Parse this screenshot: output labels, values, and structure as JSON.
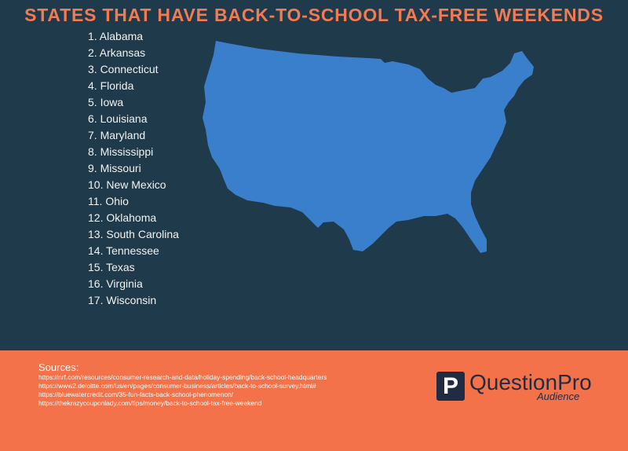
{
  "title": "STATES THAT HAVE BACK-TO-SCHOOL TAX-FREE WEEKENDS",
  "states": [
    "1. Alabama",
    "2. Arkansas",
    "3. Connecticut",
    "4. Florida",
    "5. Iowa",
    "6. Louisiana",
    "7. Maryland",
    "8. Mississippi",
    "9. Missouri",
    "10. New Mexico",
    "11. Ohio",
    "12. Oklahoma",
    "13. South Carolina",
    "14. Tennessee",
    "15. Texas",
    "16. Virginia",
    "17. Wisconsin"
  ],
  "sources": {
    "label": "Sources:",
    "links": [
      "https://nrf.com/resources/consumer-research-and-data/holiday-spending/back-school-headquarters",
      "https://www2.deloitte.com/us/en/pages/consumer-business/articles/back-to-school-survey.html#",
      "https://bluewatercredit.com/35-fun-facts-back-school-phenomenon/",
      "https://thekrazycouponlady.com/tips/money/back-to-school-tax-free-weekend"
    ]
  },
  "logo": {
    "name": "QuestionPro",
    "tagline": "Audience"
  }
}
